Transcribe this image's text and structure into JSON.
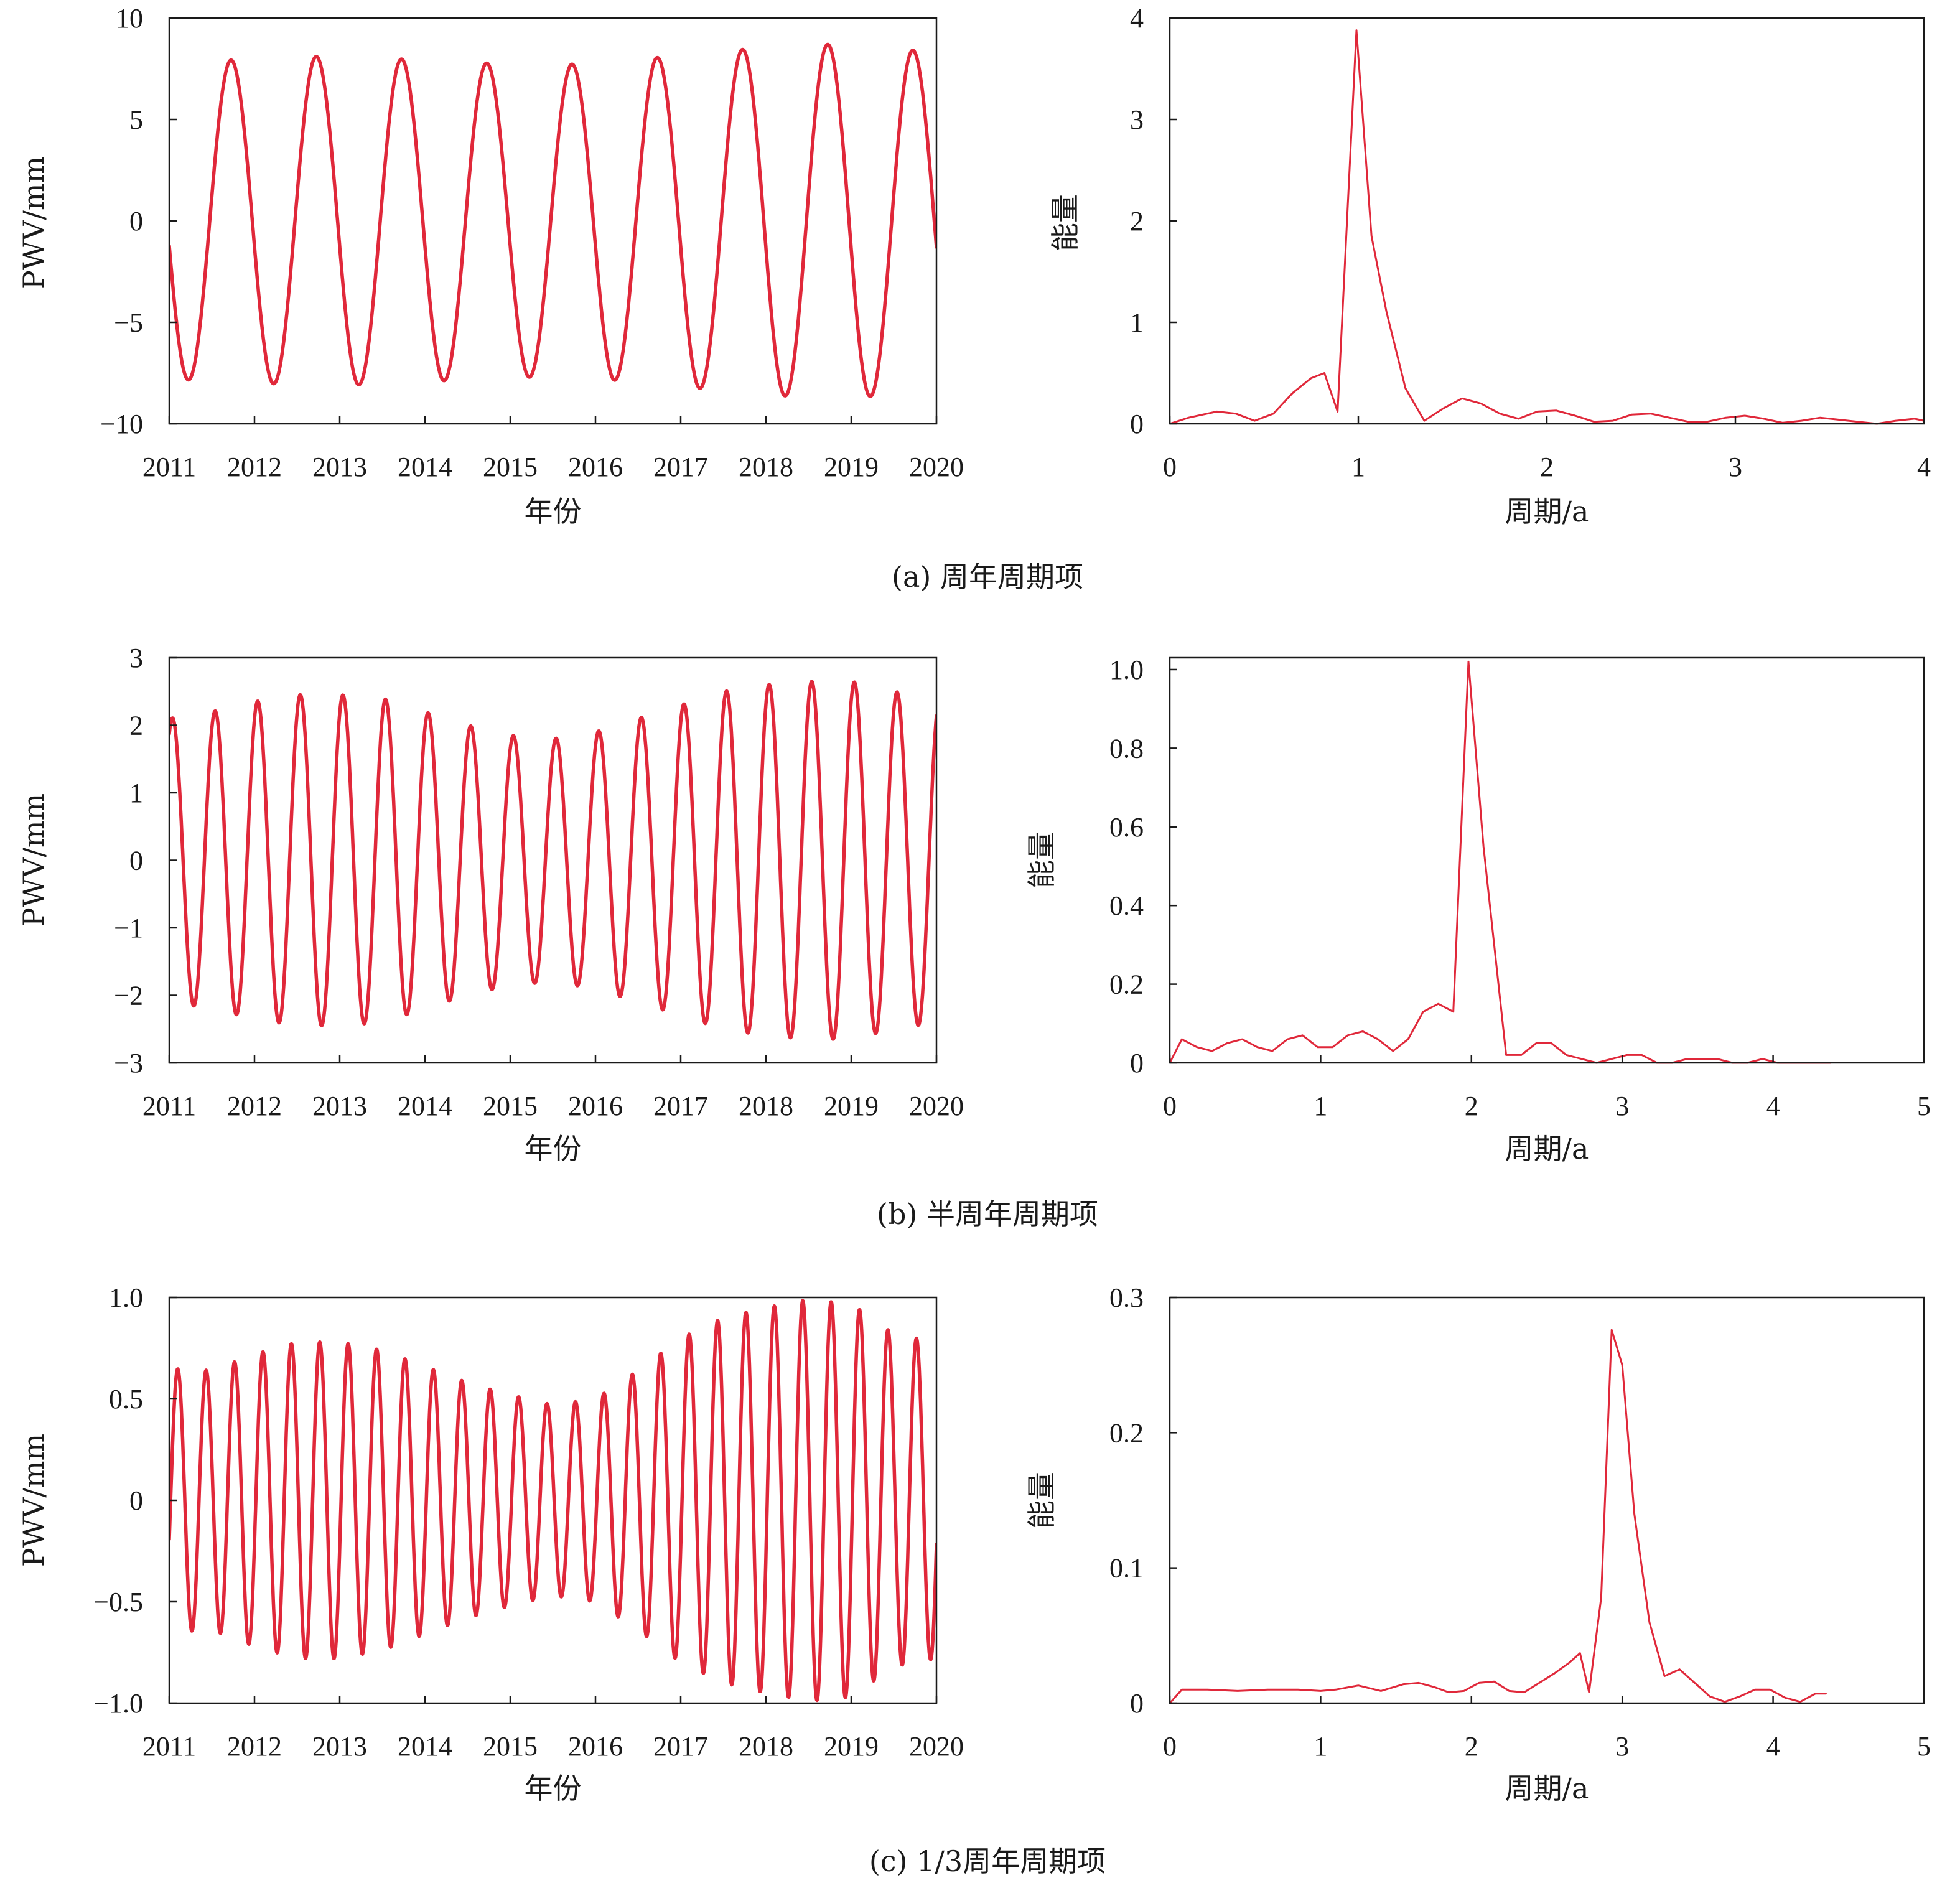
{
  "colors": {
    "series": "#e0283a",
    "axis": "#1a1a1a"
  },
  "captions": [
    "(a) 周年周期项",
    "(b) 半周年周期项",
    "(c) 1/3周年周期项"
  ],
  "chart_data": [
    {
      "id": "a-left",
      "type": "line",
      "xlabel": "年份",
      "ylabel": "PWV/mm",
      "xlim": [
        2011,
        2020
      ],
      "ylim": [
        -10,
        10
      ],
      "xticks": [
        2011,
        2012,
        2013,
        2014,
        2015,
        2016,
        2017,
        2018,
        2019,
        2020
      ],
      "xtick_labels": [
        "2011",
        "2012",
        "2013",
        "2014",
        "2015",
        "2016",
        "2017",
        "2018",
        "2019",
        "2020"
      ],
      "yticks": [
        -10,
        -5,
        0,
        5,
        10
      ],
      "ytick_labels": [
        "−10",
        "−5",
        "0",
        "5",
        "10"
      ],
      "series": [
        {
          "kind": "periodic",
          "period": 1.0,
          "phase": 3.3,
          "x_start": 2011.0,
          "x_end": 2020.0,
          "amplitude_envelope": {
            "x": [
              2011.0,
              2011.6,
              2012.1,
              2012.6,
              2013.1,
              2013.6,
              2014.1,
              2014.6,
              2015.1,
              2015.6,
              2016.1,
              2016.6,
              2017.1,
              2017.6,
              2018.1,
              2018.6,
              2019.1,
              2019.6,
              2020.0
            ],
            "amp": [
              7.8,
              7.9,
              8.0,
              8.1,
              8.1,
              8.0,
              7.9,
              7.8,
              7.7,
              7.7,
              7.8,
              8.0,
              8.2,
              8.4,
              8.6,
              8.7,
              8.7,
              8.5,
              8.2
            ]
          }
        }
      ]
    },
    {
      "id": "a-right",
      "type": "line",
      "xlabel": "周期/a",
      "ylabel": "能量",
      "xlim": [
        0,
        4
      ],
      "ylim": [
        0,
        4
      ],
      "xticks": [
        0,
        1,
        2,
        3,
        4
      ],
      "xtick_labels": [
        "0",
        "1",
        "2",
        "3",
        "4"
      ],
      "yticks": [
        0,
        1,
        2,
        3,
        4
      ],
      "ytick_labels": [
        "0",
        "1",
        "2",
        "3",
        "4"
      ],
      "series": [
        {
          "x": [
            0.0,
            0.1,
            0.25,
            0.35,
            0.45,
            0.55,
            0.65,
            0.75,
            0.82,
            0.89,
            0.99,
            1.07,
            1.15,
            1.25,
            1.35,
            1.45,
            1.55,
            1.65,
            1.75,
            1.85,
            1.95,
            2.05,
            2.15,
            2.25,
            2.35,
            2.45,
            2.55,
            2.65,
            2.75,
            2.85,
            2.95,
            3.05,
            3.15,
            3.25,
            3.35,
            3.45,
            3.55,
            3.65,
            3.75,
            3.85,
            3.95,
            4.0
          ],
          "y": [
            0.0,
            0.06,
            0.12,
            0.1,
            0.03,
            0.1,
            0.3,
            0.45,
            0.5,
            0.12,
            3.88,
            1.85,
            1.1,
            0.35,
            0.03,
            0.15,
            0.25,
            0.2,
            0.1,
            0.05,
            0.12,
            0.13,
            0.08,
            0.02,
            0.03,
            0.09,
            0.1,
            0.06,
            0.02,
            0.02,
            0.06,
            0.08,
            0.05,
            0.01,
            0.03,
            0.06,
            0.04,
            0.02,
            0.0,
            0.03,
            0.05,
            0.03
          ]
        }
      ]
    },
    {
      "id": "b-left",
      "type": "line",
      "xlabel": "年份",
      "ylabel": "PWV/mm",
      "xlim": [
        2011,
        2020
      ],
      "ylim": [
        -3,
        3
      ],
      "xticks": [
        2011,
        2012,
        2013,
        2014,
        2015,
        2016,
        2017,
        2018,
        2019,
        2020
      ],
      "xtick_labels": [
        "2011",
        "2012",
        "2013",
        "2014",
        "2015",
        "2016",
        "2017",
        "2018",
        "2019",
        "2020"
      ],
      "yticks": [
        -3,
        -2,
        -1,
        0,
        1,
        2,
        3
      ],
      "ytick_labels": [
        "−3",
        "−2",
        "−1",
        "0",
        "1",
        "2",
        "3"
      ],
      "series": [
        {
          "kind": "periodic",
          "period": 0.5,
          "phase": 1.1,
          "x_start": 2011.0,
          "x_end": 2020.0,
          "amplitude_envelope": {
            "x": [
              2011.0,
              2011.5,
              2012.0,
              2012.5,
              2013.0,
              2013.5,
              2014.0,
              2014.5,
              2015.0,
              2015.5,
              2016.0,
              2016.5,
              2017.0,
              2017.5,
              2018.0,
              2018.5,
              2019.0,
              2019.5,
              2020.0
            ],
            "amp": [
              2.1,
              2.2,
              2.35,
              2.45,
              2.45,
              2.4,
              2.2,
              2.0,
              1.85,
              1.8,
              1.9,
              2.1,
              2.3,
              2.5,
              2.6,
              2.65,
              2.65,
              2.5,
              2.4
            ]
          }
        }
      ]
    },
    {
      "id": "b-right",
      "type": "line",
      "xlabel": "周期/a",
      "ylabel": "能量",
      "xlim": [
        0,
        5
      ],
      "ylim": [
        0,
        1.03
      ],
      "xticks": [
        0,
        1,
        2,
        3,
        4,
        5
      ],
      "xtick_labels": [
        "0",
        "1",
        "2",
        "3",
        "4",
        "5"
      ],
      "yticks": [
        0,
        0.2,
        0.4,
        0.6,
        0.8,
        1.0
      ],
      "ytick_labels": [
        "0",
        "0.2",
        "0.4",
        "0.6",
        "0.8",
        "1.0"
      ],
      "series": [
        {
          "x": [
            0.0,
            0.08,
            0.18,
            0.28,
            0.38,
            0.48,
            0.58,
            0.68,
            0.78,
            0.88,
            0.98,
            1.08,
            1.18,
            1.28,
            1.38,
            1.48,
            1.58,
            1.68,
            1.78,
            1.88,
            1.98,
            2.08,
            2.23,
            2.33,
            2.43,
            2.53,
            2.63,
            2.73,
            2.83,
            2.93,
            3.03,
            3.13,
            3.23,
            3.33,
            3.43,
            3.53,
            3.63,
            3.73,
            3.83,
            3.93,
            4.03,
            4.13,
            4.23,
            4.33,
            4.38
          ],
          "y": [
            0.0,
            0.06,
            0.04,
            0.03,
            0.05,
            0.06,
            0.04,
            0.03,
            0.06,
            0.07,
            0.04,
            0.04,
            0.07,
            0.08,
            0.06,
            0.03,
            0.06,
            0.13,
            0.15,
            0.13,
            1.02,
            0.55,
            0.02,
            0.02,
            0.05,
            0.05,
            0.02,
            0.01,
            0.0,
            0.01,
            0.02,
            0.02,
            0.0,
            0.0,
            0.01,
            0.01,
            0.01,
            0.0,
            0.0,
            0.01,
            0.0,
            0.0,
            0.0,
            0.0,
            0.0
          ]
        }
      ]
    },
    {
      "id": "c-left",
      "type": "line",
      "xlabel": "年份",
      "ylabel": "PWV/mm",
      "xlim": [
        2011,
        2020
      ],
      "ylim": [
        -1,
        1
      ],
      "xticks": [
        2011,
        2012,
        2013,
        2014,
        2015,
        2016,
        2017,
        2018,
        2019,
        2020
      ],
      "xtick_labels": [
        "2011",
        "2012",
        "2013",
        "2014",
        "2015",
        "2016",
        "2017",
        "2018",
        "2019",
        "2020"
      ],
      "yticks": [
        -1,
        -0.5,
        0,
        0.5,
        1
      ],
      "ytick_labels": [
        "−1.0",
        "−0.5",
        "0",
        "0.5",
        "1.0"
      ],
      "series": [
        {
          "kind": "periodic",
          "period": 0.3333,
          "phase": -0.3,
          "x_start": 2011.0,
          "x_end": 2020.0,
          "amplitude_envelope": {
            "x": [
              2011.0,
              2011.5,
              2012.0,
              2012.5,
              2013.0,
              2013.5,
              2014.0,
              2014.5,
              2015.0,
              2015.5,
              2016.0,
              2016.5,
              2017.0,
              2017.5,
              2018.0,
              2018.5,
              2019.0,
              2019.5,
              2020.0
            ],
            "amp": [
              0.65,
              0.64,
              0.72,
              0.78,
              0.78,
              0.74,
              0.66,
              0.58,
              0.52,
              0.47,
              0.5,
              0.64,
              0.8,
              0.9,
              0.95,
              0.99,
              0.97,
              0.82,
              0.78
            ]
          }
        }
      ]
    },
    {
      "id": "c-right",
      "type": "line",
      "xlabel": "周期/a",
      "ylabel": "能量",
      "xlim": [
        0,
        5
      ],
      "ylim": [
        0,
        0.3
      ],
      "xticks": [
        0,
        1,
        2,
        3,
        4,
        5
      ],
      "xtick_labels": [
        "0",
        "1",
        "2",
        "3",
        "4",
        "5"
      ],
      "yticks": [
        0,
        0.1,
        0.2,
        0.3
      ],
      "ytick_labels": [
        "0",
        "0.1",
        "0.2",
        "0.3"
      ],
      "series": [
        {
          "x": [
            0.0,
            0.08,
            0.25,
            0.45,
            0.65,
            0.85,
            1.0,
            1.1,
            1.25,
            1.4,
            1.55,
            1.65,
            1.75,
            1.85,
            1.95,
            2.05,
            2.15,
            2.25,
            2.35,
            2.45,
            2.55,
            2.65,
            2.72,
            2.78,
            2.86,
            2.93,
            3.0,
            3.08,
            3.18,
            3.28,
            3.38,
            3.48,
            3.58,
            3.68,
            3.78,
            3.88,
            3.98,
            4.08,
            4.18,
            4.28,
            4.35
          ],
          "y": [
            0.0,
            0.01,
            0.01,
            0.009,
            0.01,
            0.01,
            0.009,
            0.01,
            0.013,
            0.009,
            0.014,
            0.015,
            0.012,
            0.008,
            0.009,
            0.015,
            0.016,
            0.009,
            0.008,
            0.015,
            0.022,
            0.03,
            0.037,
            0.008,
            0.078,
            0.276,
            0.25,
            0.14,
            0.06,
            0.02,
            0.025,
            0.015,
            0.005,
            0.001,
            0.005,
            0.01,
            0.01,
            0.004,
            0.001,
            0.007,
            0.007
          ]
        }
      ]
    }
  ]
}
